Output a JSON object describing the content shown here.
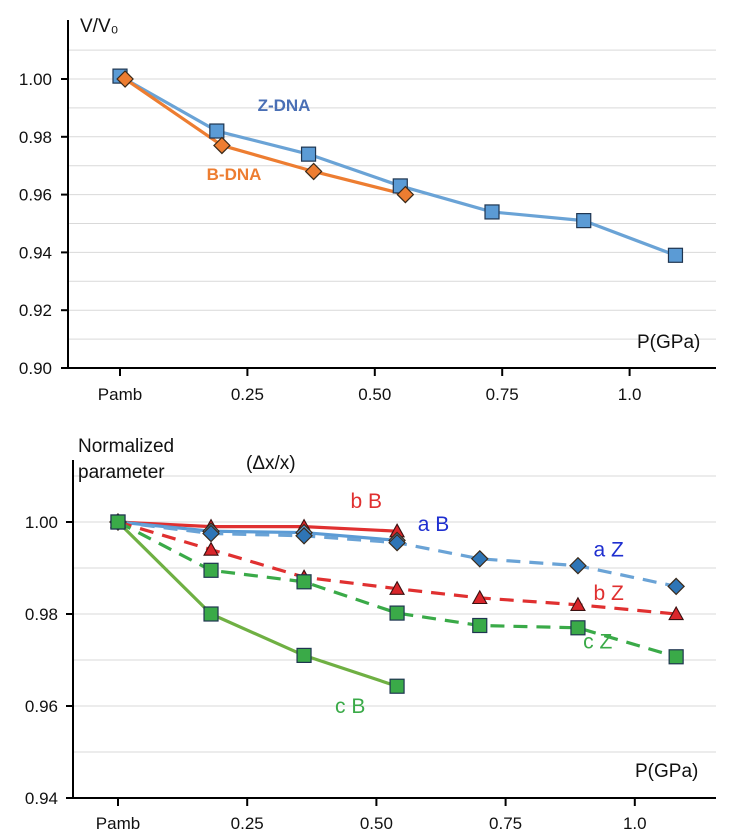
{
  "chart_data": [
    {
      "type": "line",
      "ylabel": "V/V₀",
      "xlabel": "P(GPa)",
      "categories": [
        "Pamb",
        "0.25",
        "0.50",
        "0.75",
        "1.0"
      ],
      "category_values": [
        0,
        0.25,
        0.5,
        0.75,
        1.0
      ],
      "y_ticks": [
        "0.90",
        "0.92",
        "0.94",
        "0.96",
        "0.98",
        "1.00"
      ],
      "y_tick_values": [
        0.9,
        0.92,
        0.94,
        0.96,
        0.98,
        1.0
      ],
      "xlim": [
        -0.13,
        1.2
      ],
      "ylim": [
        0.9,
        1.02
      ],
      "grid": true,
      "series": [
        {
          "name": "Z-DNA",
          "color": "#6aa3d6",
          "marker_fill": "#5b9bd5",
          "marker": "square",
          "dash": false,
          "x": [
            0.0,
            0.19,
            0.37,
            0.55,
            0.73,
            0.91,
            1.09
          ],
          "y": [
            1.001,
            0.982,
            0.974,
            0.963,
            0.954,
            0.951,
            0.939
          ]
        },
        {
          "name": "B-DNA",
          "color": "#ed7d31",
          "marker_fill": "#ed7d31",
          "marker": "diamond",
          "dash": false,
          "x": [
            0.01,
            0.2,
            0.38,
            0.56
          ],
          "y": [
            1.0,
            0.977,
            0.968,
            0.96
          ]
        }
      ],
      "annotations": [
        {
          "text": "Z-DNA",
          "color": "#4a6fb5",
          "x": 0.27,
          "y": 0.989
        },
        {
          "text": "B-DNA",
          "color": "#ed7d31",
          "x": 0.17,
          "y": 0.965
        }
      ]
    },
    {
      "type": "line",
      "ylabel": "Normalized parameter",
      "ylabel_extra": "(Δx/x)",
      "xlabel": "P(GPa)",
      "categories": [
        "Pamb",
        "0.25",
        "0.50",
        "0.75",
        "1.0"
      ],
      "category_values": [
        0,
        0.25,
        0.5,
        0.75,
        1.0
      ],
      "y_ticks": [
        "0.94",
        "0.96",
        "0.98",
        "1.00"
      ],
      "y_tick_values": [
        0.94,
        0.96,
        0.98,
        1.0
      ],
      "xlim": [
        -0.15,
        1.2
      ],
      "ylim": [
        0.94,
        1.012
      ],
      "grid": true,
      "series": [
        {
          "name": "b B",
          "color": "#e03030",
          "marker_fill": "#d9262b",
          "marker": "triangle",
          "dash": false,
          "x": [
            0.0,
            0.18,
            0.36,
            0.54
          ],
          "y": [
            1.0,
            0.999,
            0.999,
            0.998
          ]
        },
        {
          "name": "a B",
          "color": "#5b9bd5",
          "marker_fill": "#5b9bd5",
          "marker": "diamond",
          "dash": false,
          "x": [
            0.0,
            0.18,
            0.36,
            0.54
          ],
          "y": [
            1.0,
            0.998,
            0.9977,
            0.996
          ]
        },
        {
          "name": "a Z",
          "color": "#6aa3d6",
          "marker_fill": "#2e75b6",
          "marker": "diamond",
          "dash": true,
          "x": [
            0.0,
            0.18,
            0.36,
            0.54,
            0.7,
            0.89,
            1.08
          ],
          "y": [
            1.0,
            0.9975,
            0.997,
            0.9955,
            0.992,
            0.9905,
            0.986
          ]
        },
        {
          "name": "b Z",
          "color": "#e03030",
          "marker_fill": "#d9262b",
          "marker": "triangle",
          "dash": true,
          "x": [
            0.0,
            0.18,
            0.36,
            0.54,
            0.7,
            0.89,
            1.08
          ],
          "y": [
            1.0,
            0.994,
            0.988,
            0.9855,
            0.9835,
            0.982,
            0.98
          ]
        },
        {
          "name": "c Z",
          "color": "#3aaa48",
          "marker_fill": "#3aaa48",
          "marker": "square",
          "dash": true,
          "x": [
            0.0,
            0.18,
            0.36,
            0.54,
            0.7,
            0.89,
            1.08
          ],
          "y": [
            1.0,
            0.9895,
            0.987,
            0.9802,
            0.9775,
            0.977,
            0.9707
          ]
        },
        {
          "name": "c B",
          "color": "#6fb043",
          "marker_fill": "#3aaa48",
          "marker": "square",
          "dash": false,
          "x": [
            0.0,
            0.18,
            0.36,
            0.54
          ],
          "y": [
            1.0,
            0.98,
            0.971,
            0.9643
          ]
        }
      ],
      "annotations": [
        {
          "text": "b B",
          "color": "#e03030",
          "x": 0.45,
          "y": 1.003
        },
        {
          "text": "a B",
          "color": "#1f2fd0",
          "x": 0.58,
          "y": 0.998
        },
        {
          "text": "a Z",
          "color": "#1f2fd0",
          "x": 0.92,
          "y": 0.9925
        },
        {
          "text": "b Z",
          "color": "#e03030",
          "x": 0.92,
          "y": 0.983
        },
        {
          "text": "c Z",
          "color": "#3aaa48",
          "x": 0.9,
          "y": 0.9725
        },
        {
          "text": "c B",
          "color": "#3aaa48",
          "x": 0.42,
          "y": 0.9585
        }
      ]
    }
  ]
}
